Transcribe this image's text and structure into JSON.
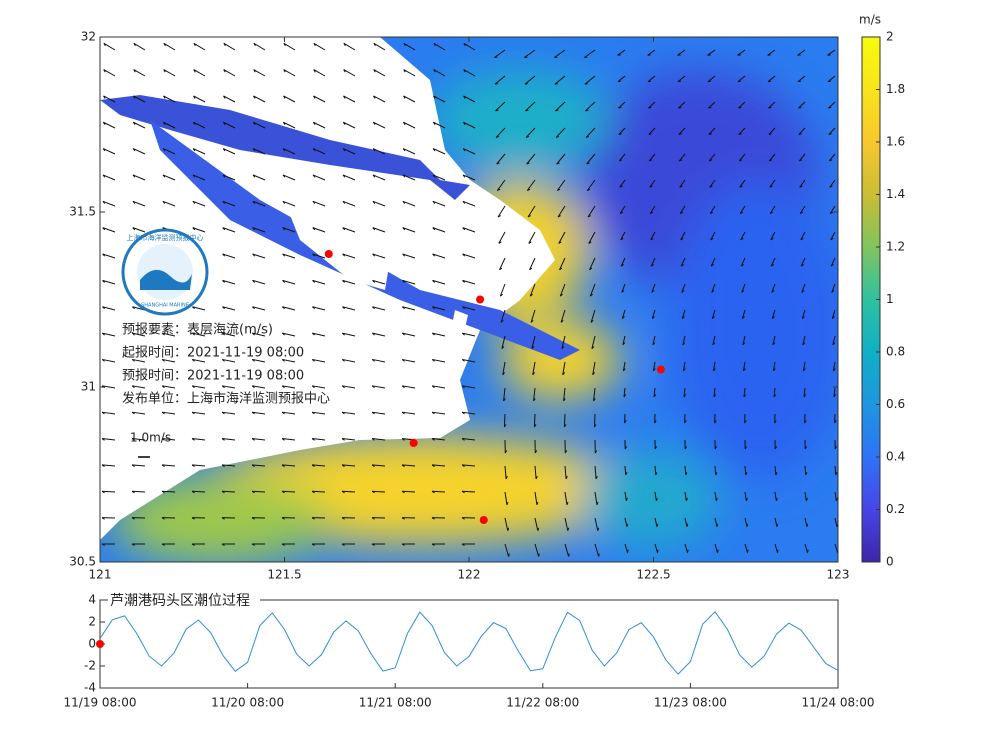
{
  "map": {
    "xlim": [
      121,
      123
    ],
    "ylim": [
      30.5,
      32
    ],
    "xticks": [
      121,
      121.5,
      122,
      122.5,
      123
    ],
    "yticks": [
      30.5,
      31,
      31.5,
      32
    ],
    "colorbar": {
      "unit": "m/s",
      "lim": [
        0,
        2
      ],
      "ticks": [
        0,
        0.2,
        0.4,
        0.6,
        0.8,
        1,
        1.2,
        1.4,
        1.6,
        1.8,
        2
      ],
      "colormap": [
        "#3e26a8",
        "#4745e7",
        "#2f73f6",
        "#1e96e0",
        "#0fb0c5",
        "#2ec1a0",
        "#81c45d",
        "#c9bd35",
        "#f9c72d",
        "#f7e41a",
        "#f9fb0e"
      ]
    },
    "stations": {
      "color": "#ff0000",
      "lon": [
        121.62,
        122.03,
        122.52,
        121.85,
        122.04
      ],
      "lat": [
        31.38,
        31.25,
        31.05,
        30.84,
        30.62
      ]
    },
    "logo": {
      "top": "上海市海洋监测预报中心",
      "bottom": "SHANGHAI MARINE"
    },
    "info": [
      "预报要素：表层海流(m/s)",
      "起报时间：2021-11-19 08:00",
      "预报时间：2021-11-19 08:00",
      "发布单位：上海市海洋监测预报中心"
    ],
    "scale_label": "1.0m/s"
  },
  "chart_data": {
    "type": "line",
    "title": "芦潮港码头区潮位过程",
    "x": [
      "11/19 08:00",
      "11/19 10:00",
      "11/19 12:00",
      "11/19 14:00",
      "11/19 16:00",
      "11/19 18:00",
      "11/19 20:00",
      "11/19 22:00",
      "11/20 00:00",
      "11/20 02:00",
      "11/20 04:00",
      "11/20 06:00",
      "11/20 08:00",
      "11/20 10:00",
      "11/20 12:00",
      "11/20 14:00",
      "11/20 16:00",
      "11/20 18:00",
      "11/20 20:00",
      "11/20 22:00",
      "11/21 00:00",
      "11/21 02:00",
      "11/21 04:00",
      "11/21 06:00",
      "11/21 08:00",
      "11/21 10:00",
      "11/21 12:00",
      "11/21 14:00",
      "11/21 16:00",
      "11/21 18:00",
      "11/21 20:00",
      "11/21 22:00",
      "11/22 00:00",
      "11/22 02:00",
      "11/22 04:00",
      "11/22 06:00",
      "11/22 08:00",
      "11/22 10:00",
      "11/22 12:00",
      "11/22 14:00",
      "11/22 16:00",
      "11/22 18:00",
      "11/22 20:00",
      "11/22 22:00",
      "11/23 00:00",
      "11/23 02:00",
      "11/23 04:00",
      "11/23 06:00",
      "11/23 08:00",
      "11/23 10:00",
      "11/23 12:00",
      "11/23 14:00",
      "11/23 16:00",
      "11/23 18:00",
      "11/23 20:00",
      "11/23 22:00",
      "11/24 00:00",
      "11/24 02:00",
      "11/24 04:00",
      "11/24 06:00",
      "11/24 08:00"
    ],
    "series": [
      {
        "color": "#2f8fd8",
        "values": [
          0.5,
          2.2,
          2.56,
          0.93,
          -1.1,
          -2.0,
          -0.85,
          1.34,
          2.18,
          1.03,
          -1.05,
          -2.48,
          -1.66,
          1.68,
          2.83,
          1.32,
          -0.94,
          -2.0,
          -0.98,
          1.08,
          2.1,
          1.2,
          -0.83,
          -2.46,
          -2.17,
          0.97,
          2.9,
          1.68,
          -0.78,
          -2.0,
          -1.14,
          0.71,
          1.94,
          1.41,
          -0.63,
          -2.43,
          -2.25,
          0.56,
          2.88,
          2.14,
          -0.54,
          -2.0,
          -0.83,
          1.31,
          1.94,
          0.64,
          -1.44,
          -2.74,
          -1.6,
          1.81,
          2.93,
          1.36,
          -1.0,
          -2.1,
          -1.1,
          0.9,
          1.9,
          1.27,
          -0.25,
          -1.77,
          -2.4
        ]
      }
    ],
    "marker": {
      "x": "11/19 08:00",
      "value": 0,
      "color": "#ff0000"
    },
    "xlim": [
      "11/19 08:00",
      "11/24 08:00"
    ],
    "xticks": [
      "11/19 08:00",
      "11/20 08:00",
      "11/21 08:00",
      "11/22 08:00",
      "11/23 08:00",
      "11/24 08:00"
    ],
    "ylim": [
      -4,
      4
    ],
    "yticks": [
      -4,
      -2,
      0,
      2,
      4
    ]
  }
}
